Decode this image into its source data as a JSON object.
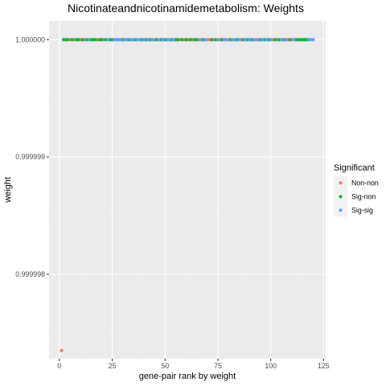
{
  "chart_data": {
    "type": "scatter",
    "title": "Nicotinateandnicotinamidemetabolism: Weights",
    "xlabel": "gene-pair rank by weight",
    "ylabel": "weight",
    "xlim": [
      -4.9,
      126
    ],
    "ylim": [
      0.99999728,
      1.00000016
    ],
    "x_ticks": [
      0,
      25,
      50,
      75,
      100,
      125
    ],
    "x_tick_labels": [
      "0",
      "25",
      "50",
      "75",
      "100",
      "125"
    ],
    "y_ticks": [
      0.999998,
      0.999999,
      1.0
    ],
    "y_tick_labels": [
      "0.999998",
      "0.999999",
      "1.000000"
    ],
    "grid": true,
    "legend": {
      "title": "Significant",
      "position": "right",
      "entries": [
        {
          "label": "Non-non",
          "color": "#F8766D"
        },
        {
          "label": "Sig-non",
          "color": "#00BA38"
        },
        {
          "label": "Sig-sig",
          "color": "#619CFF"
        }
      ]
    },
    "series": [
      {
        "name": "Non-non",
        "color": "#F8766D",
        "points": [
          {
            "x": 1,
            "y": 0.99999735
          },
          {
            "x": 5,
            "y": 1.0
          },
          {
            "x": 7,
            "y": 1.0
          },
          {
            "x": 10,
            "y": 1.0
          },
          {
            "x": 12,
            "y": 1.0
          },
          {
            "x": 18,
            "y": 1.0
          },
          {
            "x": 21,
            "y": 1.0
          },
          {
            "x": 45,
            "y": 1.0
          },
          {
            "x": 57,
            "y": 1.0
          },
          {
            "x": 59,
            "y": 1.0
          },
          {
            "x": 61,
            "y": 1.0
          },
          {
            "x": 63,
            "y": 1.0
          },
          {
            "x": 66,
            "y": 1.0
          },
          {
            "x": 70,
            "y": 1.0
          },
          {
            "x": 71,
            "y": 1.0
          },
          {
            "x": 73,
            "y": 1.0
          },
          {
            "x": 76,
            "y": 1.0
          },
          {
            "x": 80,
            "y": 1.0
          },
          {
            "x": 86,
            "y": 1.0
          },
          {
            "x": 93,
            "y": 1.0
          },
          {
            "x": 101,
            "y": 1.0
          },
          {
            "x": 103,
            "y": 1.0
          },
          {
            "x": 108,
            "y": 1.0
          },
          {
            "x": 110,
            "y": 1.0
          }
        ]
      },
      {
        "name": "Sig-non",
        "color": "#00BA38",
        "points": [
          {
            "x": 2,
            "y": 1.0
          },
          {
            "x": 3,
            "y": 1.0
          },
          {
            "x": 4,
            "y": 1.0
          },
          {
            "x": 6,
            "y": 1.0
          },
          {
            "x": 8,
            "y": 1.0
          },
          {
            "x": 9,
            "y": 1.0
          },
          {
            "x": 11,
            "y": 1.0
          },
          {
            "x": 13,
            "y": 1.0
          },
          {
            "x": 15,
            "y": 1.0
          },
          {
            "x": 16,
            "y": 1.0
          },
          {
            "x": 17,
            "y": 1.0
          },
          {
            "x": 19,
            "y": 1.0
          },
          {
            "x": 20,
            "y": 1.0
          },
          {
            "x": 22,
            "y": 1.0
          },
          {
            "x": 24,
            "y": 1.0
          },
          {
            "x": 25,
            "y": 1.0
          },
          {
            "x": 30,
            "y": 1.0
          },
          {
            "x": 33,
            "y": 1.0
          },
          {
            "x": 36,
            "y": 1.0
          },
          {
            "x": 39,
            "y": 1.0
          },
          {
            "x": 41,
            "y": 1.0
          },
          {
            "x": 43,
            "y": 1.0
          },
          {
            "x": 46,
            "y": 1.0
          },
          {
            "x": 48,
            "y": 1.0
          },
          {
            "x": 50,
            "y": 1.0
          },
          {
            "x": 53,
            "y": 1.0
          },
          {
            "x": 55,
            "y": 1.0
          },
          {
            "x": 56,
            "y": 1.0
          },
          {
            "x": 58,
            "y": 1.0
          },
          {
            "x": 60,
            "y": 1.0
          },
          {
            "x": 62,
            "y": 1.0
          },
          {
            "x": 64,
            "y": 1.0
          },
          {
            "x": 65,
            "y": 1.0
          },
          {
            "x": 68,
            "y": 1.0
          },
          {
            "x": 72,
            "y": 1.0
          },
          {
            "x": 74,
            "y": 1.0
          },
          {
            "x": 77,
            "y": 1.0
          },
          {
            "x": 81,
            "y": 1.0
          },
          {
            "x": 84,
            "y": 1.0
          },
          {
            "x": 87,
            "y": 1.0
          },
          {
            "x": 89,
            "y": 1.0
          },
          {
            "x": 91,
            "y": 1.0
          },
          {
            "x": 95,
            "y": 1.0
          },
          {
            "x": 97,
            "y": 1.0
          },
          {
            "x": 99,
            "y": 1.0
          },
          {
            "x": 102,
            "y": 1.0
          },
          {
            "x": 104,
            "y": 1.0
          },
          {
            "x": 106,
            "y": 1.0
          },
          {
            "x": 109,
            "y": 1.0
          },
          {
            "x": 112,
            "y": 1.0
          },
          {
            "x": 113,
            "y": 1.0
          },
          {
            "x": 114,
            "y": 1.0
          },
          {
            "x": 115,
            "y": 1.0
          },
          {
            "x": 116,
            "y": 1.0
          },
          {
            "x": 117,
            "y": 1.0
          }
        ]
      },
      {
        "name": "Sig-sig",
        "color": "#619CFF",
        "points": [
          {
            "x": 14,
            "y": 1.0
          },
          {
            "x": 23,
            "y": 1.0
          },
          {
            "x": 26,
            "y": 1.0
          },
          {
            "x": 27,
            "y": 1.0
          },
          {
            "x": 28,
            "y": 1.0
          },
          {
            "x": 29,
            "y": 1.0
          },
          {
            "x": 31,
            "y": 1.0
          },
          {
            "x": 32,
            "y": 1.0
          },
          {
            "x": 34,
            "y": 1.0
          },
          {
            "x": 35,
            "y": 1.0
          },
          {
            "x": 37,
            "y": 1.0
          },
          {
            "x": 38,
            "y": 1.0
          },
          {
            "x": 40,
            "y": 1.0
          },
          {
            "x": 42,
            "y": 1.0
          },
          {
            "x": 44,
            "y": 1.0
          },
          {
            "x": 47,
            "y": 1.0
          },
          {
            "x": 49,
            "y": 1.0
          },
          {
            "x": 51,
            "y": 1.0
          },
          {
            "x": 52,
            "y": 1.0
          },
          {
            "x": 54,
            "y": 1.0
          },
          {
            "x": 67,
            "y": 1.0
          },
          {
            "x": 69,
            "y": 1.0
          },
          {
            "x": 75,
            "y": 1.0
          },
          {
            "x": 78,
            "y": 1.0
          },
          {
            "x": 79,
            "y": 1.0
          },
          {
            "x": 82,
            "y": 1.0
          },
          {
            "x": 83,
            "y": 1.0
          },
          {
            "x": 85,
            "y": 1.0
          },
          {
            "x": 88,
            "y": 1.0
          },
          {
            "x": 90,
            "y": 1.0
          },
          {
            "x": 92,
            "y": 1.0
          },
          {
            "x": 94,
            "y": 1.0
          },
          {
            "x": 96,
            "y": 1.0
          },
          {
            "x": 98,
            "y": 1.0
          },
          {
            "x": 100,
            "y": 1.0
          },
          {
            "x": 105,
            "y": 1.0
          },
          {
            "x": 107,
            "y": 1.0
          },
          {
            "x": 111,
            "y": 1.0
          },
          {
            "x": 118,
            "y": 1.0
          },
          {
            "x": 119,
            "y": 1.0
          },
          {
            "x": 120,
            "y": 1.0
          }
        ]
      }
    ]
  }
}
